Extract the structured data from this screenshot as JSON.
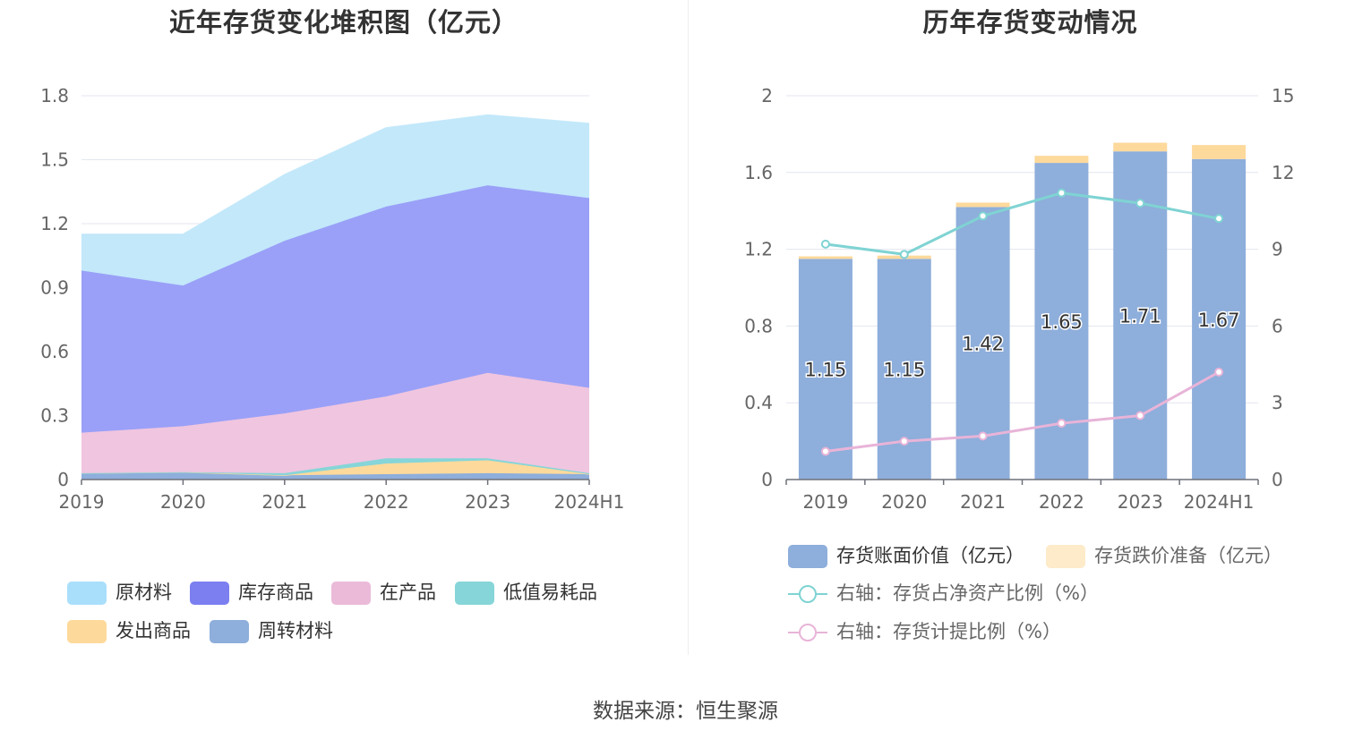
{
  "source_text": "数据来源：恒生聚源",
  "chart_data": [
    {
      "type": "area",
      "stacked": true,
      "title": "近年存货变化堆积图（亿元）",
      "categories": [
        "2019",
        "2020",
        "2021",
        "2022",
        "2023",
        "2024H1"
      ],
      "y_ticks": [
        "0",
        "0.3",
        "0.6",
        "0.9",
        "1.2",
        "1.5",
        "1.8"
      ],
      "ylim": [
        0,
        1.8
      ],
      "grid": true,
      "legend_position": "bottom",
      "series": [
        {
          "name": "周转材料",
          "color": "#8eaedb",
          "values": [
            0.03,
            0.035,
            0.02,
            0.025,
            0.03,
            0.025
          ]
        },
        {
          "name": "发出商品",
          "color": "#fdd99b",
          "values": [
            0.0,
            0.0,
            0.0,
            0.05,
            0.06,
            0.0
          ]
        },
        {
          "name": "低值易耗品",
          "color": "#86d5d8",
          "values": [
            0.0,
            0.0,
            0.01,
            0.025,
            0.01,
            0.005
          ]
        },
        {
          "name": "在产品",
          "color": "#f0c5e0",
          "values": [
            0.19,
            0.215,
            0.28,
            0.29,
            0.4,
            0.4
          ]
        },
        {
          "name": "库存商品",
          "color": "#9aa0f7",
          "values": [
            0.76,
            0.66,
            0.81,
            0.89,
            0.88,
            0.89
          ]
        },
        {
          "name": "原材料",
          "color": "#c2e8fa",
          "values": [
            0.17,
            0.24,
            0.31,
            0.37,
            0.33,
            0.35
          ]
        }
      ],
      "legend": [
        {
          "name": "原材料",
          "color": "#a9dffb"
        },
        {
          "name": "库存商品",
          "color": "#7b7ff0"
        },
        {
          "name": "在产品",
          "color": "#ebbad9"
        },
        {
          "name": "低值易耗品",
          "color": "#86d5d8"
        },
        {
          "name": "发出商品",
          "color": "#fdd99b"
        },
        {
          "name": "周转材料",
          "color": "#8eaedb"
        }
      ]
    },
    {
      "type": "bar",
      "stacked": true,
      "title": "历年存货变动情况",
      "categories": [
        "2019",
        "2020",
        "2021",
        "2022",
        "2023",
        "2024H1"
      ],
      "y_ticks_left": [
        "0",
        "0.4",
        "0.8",
        "1.2",
        "1.6",
        "2"
      ],
      "y_ticks_right": [
        "0",
        "3",
        "6",
        "9",
        "12",
        "15"
      ],
      "ylim_left": [
        0,
        2
      ],
      "ylim_right": [
        0,
        15
      ],
      "grid": true,
      "legend_position": "bottom",
      "bars": [
        {
          "name": "存货账面价值（亿元）",
          "color": "#8eaedb",
          "values": [
            1.15,
            1.15,
            1.42,
            1.65,
            1.71,
            1.67
          ],
          "labels": [
            "1.15",
            "1.15",
            "1.42",
            "1.65",
            "1.71",
            "1.67"
          ]
        },
        {
          "name": "存货跌价准备（亿元）",
          "color": "#fdd99b",
          "values": [
            0.013,
            0.017,
            0.023,
            0.037,
            0.045,
            0.073
          ]
        }
      ],
      "lines": [
        {
          "name": "右轴：存货占净资产比例（%）",
          "color": "#7fd3d3",
          "axis": "right",
          "values": [
            9.2,
            8.8,
            10.3,
            11.2,
            10.8,
            10.2
          ]
        },
        {
          "name": "右轴：存货计提比例（%）",
          "color": "#e8b4d8",
          "axis": "right",
          "values": [
            1.1,
            1.5,
            1.7,
            2.2,
            2.5,
            4.2
          ]
        }
      ]
    }
  ]
}
